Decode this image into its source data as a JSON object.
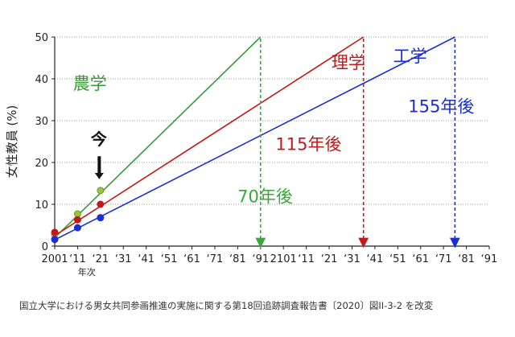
{
  "chart_data": {
    "type": "line",
    "ylabel": "女性教員 (%)",
    "x_sub_label": "年次",
    "ylim": [
      0,
      50
    ],
    "xlim": [
      2001,
      2191
    ],
    "y_ticks": [
      "0",
      "10",
      "20",
      "30",
      "40",
      "50"
    ],
    "x_ticks": [
      {
        "label": "2001",
        "x": 2001
      },
      {
        "label": "‘11",
        "x": 2011
      },
      {
        "label": "‘21",
        "x": 2021
      },
      {
        "label": "‘31",
        "x": 2031
      },
      {
        "label": "‘41",
        "x": 2041
      },
      {
        "label": "‘51",
        "x": 2051
      },
      {
        "label": "‘61",
        "x": 2061
      },
      {
        "label": "‘71",
        "x": 2071
      },
      {
        "label": "‘81",
        "x": 2081
      },
      {
        "label": "‘91",
        "x": 2091
      },
      {
        "label": "2101",
        "x": 2101
      },
      {
        "label": "‘11",
        "x": 2111
      },
      {
        "label": "‘21",
        "x": 2121
      },
      {
        "label": "‘31",
        "x": 2131
      },
      {
        "label": "‘41",
        "x": 2141
      },
      {
        "label": "‘51",
        "x": 2151
      },
      {
        "label": "‘61",
        "x": 2161
      },
      {
        "label": "‘71",
        "x": 2171
      },
      {
        "label": "‘81",
        "x": 2181
      },
      {
        "label": "‘91",
        "x": 2191
      }
    ],
    "grid": "horizontal dotted",
    "series": [
      {
        "name": "農学",
        "color": "#3a9a3a",
        "points": [
          [
            2001,
            2.8
          ],
          [
            2011,
            7.7
          ],
          [
            2021,
            13.3
          ]
        ],
        "trend": [
          [
            2001,
            2.0
          ],
          [
            2091,
            50
          ]
        ],
        "projection_label": "70年後",
        "projection_color": "#3aa83a"
      },
      {
        "name": "理学",
        "color": "#c21a1a",
        "points": [
          [
            2001,
            3.3
          ],
          [
            2011,
            6.3
          ],
          [
            2021,
            10.0
          ]
        ],
        "trend": [
          [
            2001,
            2.5
          ],
          [
            2136,
            50
          ]
        ],
        "projection_label": "115年後",
        "projection_color": "#c21a1a"
      },
      {
        "name": "工学",
        "color": "#1a2fd0",
        "points": [
          [
            2001,
            1.6
          ],
          [
            2011,
            4.4
          ],
          [
            2021,
            6.8
          ]
        ],
        "trend": [
          [
            2001,
            1.5
          ],
          [
            2176,
            50
          ]
        ],
        "projection_label": "155年後",
        "projection_color": "#1a2fd0"
      }
    ],
    "now_marker": {
      "label": "今",
      "x": 2021
    }
  },
  "caption": "国立大学における男女共同参画推進の実施に関する第18回追跡調査報告書〔2020〕図II-3-2 を改変"
}
